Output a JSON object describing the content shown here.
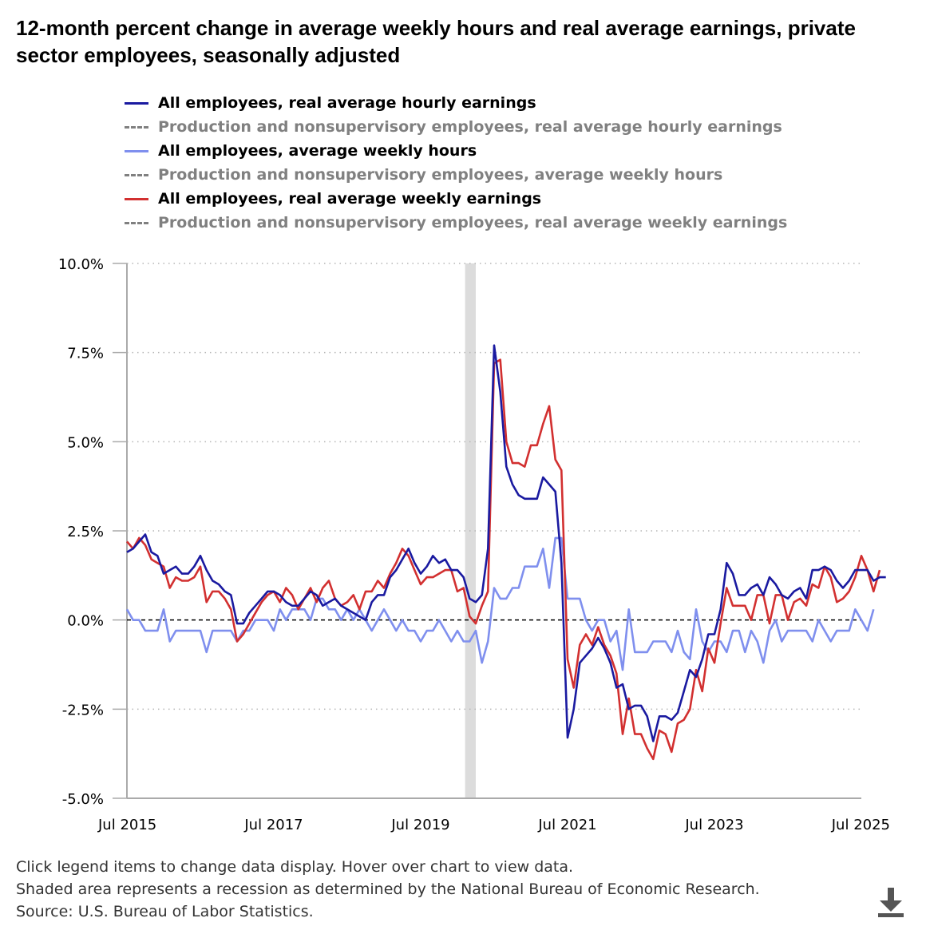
{
  "title": "12-month percent change in average weekly hours and real average earnings, private sector employees, seasonally adjusted",
  "legend": [
    {
      "label": "All employees, real average hourly earnings",
      "color": "#1a1aa0",
      "dashed": false,
      "muted": false
    },
    {
      "label": "Production and nonsupervisory employees, real average hourly earnings",
      "color": "#808080",
      "dashed": true,
      "muted": true
    },
    {
      "label": "All employees, average weekly hours",
      "color": "#7f8fee",
      "dashed": false,
      "muted": false
    },
    {
      "label": "Production and nonsupervisory employees, average weekly hours",
      "color": "#808080",
      "dashed": true,
      "muted": true
    },
    {
      "label": "All employees, real average weekly earnings",
      "color": "#d23030",
      "dashed": false,
      "muted": false
    },
    {
      "label": "Production and nonsupervisory employees, real average weekly earnings",
      "color": "#808080",
      "dashed": true,
      "muted": true
    }
  ],
  "chart_data": {
    "type": "line",
    "title": "12-month percent change in average weekly hours and real average earnings, private sector employees, seasonally adjusted",
    "xlabel": "",
    "ylabel": "",
    "x_start": "Jul 2015",
    "x_end": "Jul 2025",
    "months": 121,
    "xlim": [
      0,
      120
    ],
    "ylim": [
      -5.0,
      10.0
    ],
    "yticks": [
      -5.0,
      -2.5,
      0.0,
      2.5,
      5.0,
      7.5,
      10.0
    ],
    "ytick_labels": [
      "-5.0%",
      "-2.5%",
      "0.0%",
      "2.5%",
      "5.0%",
      "7.5%",
      "10.0%"
    ],
    "xticks": [
      0,
      24,
      48,
      72,
      96,
      120
    ],
    "xtick_labels": [
      "Jul 2015",
      "Jul 2017",
      "Jul 2019",
      "Jul 2021",
      "Jul 2023",
      "Jul 2025"
    ],
    "recession": {
      "start": 55,
      "end": 57
    },
    "zero_line": 0.0,
    "series": [
      {
        "name": "All employees, real average hourly earnings",
        "color": "#1a1aa0",
        "values": [
          1.9,
          2.0,
          2.2,
          2.4,
          1.9,
          1.8,
          1.3,
          1.4,
          1.5,
          1.3,
          1.3,
          1.5,
          1.8,
          1.4,
          1.1,
          1.0,
          0.8,
          0.7,
          -0.1,
          -0.1,
          0.2,
          0.4,
          0.6,
          0.8,
          0.8,
          0.7,
          0.5,
          0.4,
          0.4,
          0.6,
          0.8,
          0.7,
          0.4,
          0.5,
          0.6,
          0.4,
          0.3,
          0.2,
          0.1,
          0.0,
          0.5,
          0.7,
          0.7,
          1.2,
          1.4,
          1.7,
          2.0,
          1.6,
          1.3,
          1.5,
          1.8,
          1.6,
          1.7,
          1.4,
          1.4,
          1.2,
          0.6,
          0.5,
          0.7,
          2.0,
          7.7,
          6.4,
          4.3,
          3.8,
          3.5,
          3.4,
          3.4,
          3.4,
          4.0,
          3.8,
          3.6,
          1.6,
          -3.3,
          -2.5,
          -1.2,
          -1.0,
          -0.8,
          -0.5,
          -0.8,
          -1.2,
          -1.9,
          -1.8,
          -2.5,
          -2.4,
          -2.4,
          -2.7,
          -3.4,
          -2.7,
          -2.7,
          -2.8,
          -2.6,
          -2.0,
          -1.4,
          -1.6,
          -1.1,
          -0.4,
          -0.4,
          0.3,
          1.6,
          1.3,
          0.7,
          0.7,
          0.9,
          1.0,
          0.7,
          1.2,
          1.0,
          0.7,
          0.6,
          0.8,
          0.9,
          0.6,
          1.4,
          1.4,
          1.5,
          1.4,
          1.1,
          0.9,
          1.1,
          1.4,
          1.4,
          1.4,
          1.1,
          1.2,
          1.2
        ]
      },
      {
        "name": "All employees, average weekly hours",
        "color": "#7f8fee",
        "values": [
          0.3,
          0.0,
          0.0,
          -0.3,
          -0.3,
          -0.3,
          0.3,
          -0.6,
          -0.3,
          -0.3,
          -0.3,
          -0.3,
          -0.3,
          -0.9,
          -0.3,
          -0.3,
          -0.3,
          -0.3,
          -0.6,
          -0.3,
          -0.3,
          0.0,
          0.0,
          0.0,
          -0.3,
          0.3,
          0.0,
          0.3,
          0.3,
          0.3,
          0.0,
          0.6,
          0.6,
          0.3,
          0.3,
          0.0,
          0.3,
          0.0,
          0.3,
          0.0,
          -0.3,
          0.0,
          0.3,
          0.0,
          -0.3,
          0.0,
          -0.3,
          -0.3,
          -0.6,
          -0.3,
          -0.3,
          0.0,
          -0.3,
          -0.6,
          -0.3,
          -0.6,
          -0.6,
          -0.3,
          -1.2,
          -0.6,
          0.9,
          0.6,
          0.6,
          0.9,
          0.9,
          1.5,
          1.5,
          1.5,
          2.0,
          0.9,
          2.3,
          2.3,
          0.6,
          0.6,
          0.6,
          0.0,
          -0.3,
          0.0,
          0.0,
          -0.6,
          -0.3,
          -1.4,
          0.3,
          -0.9,
          -0.9,
          -0.9,
          -0.6,
          -0.6,
          -0.6,
          -0.9,
          -0.3,
          -0.9,
          -1.1,
          0.3,
          -0.6,
          -0.9,
          -0.6,
          -0.6,
          -0.9,
          -0.3,
          -0.3,
          -0.9,
          -0.3,
          -0.6,
          -1.2,
          -0.3,
          0.0,
          -0.6,
          -0.3,
          -0.3,
          -0.3,
          -0.3,
          -0.6,
          0.0,
          -0.3,
          -0.6,
          -0.3,
          -0.3,
          -0.3,
          0.3,
          0.0,
          -0.3,
          0.3
        ]
      },
      {
        "name": "All employees, real average weekly earnings",
        "color": "#d23030",
        "values": [
          2.2,
          2.0,
          2.3,
          2.1,
          1.7,
          1.6,
          1.5,
          0.9,
          1.2,
          1.1,
          1.1,
          1.2,
          1.5,
          0.5,
          0.8,
          0.8,
          0.6,
          0.3,
          -0.6,
          -0.4,
          -0.1,
          0.2,
          0.5,
          0.7,
          0.8,
          0.5,
          0.9,
          0.7,
          0.3,
          0.6,
          0.9,
          0.5,
          0.9,
          1.1,
          0.6,
          0.4,
          0.5,
          0.7,
          0.3,
          0.8,
          0.8,
          1.1,
          0.9,
          1.3,
          1.6,
          2.0,
          1.8,
          1.4,
          1.0,
          1.2,
          1.2,
          1.3,
          1.4,
          1.4,
          0.8,
          0.9,
          0.1,
          -0.1,
          0.4,
          0.8,
          7.2,
          7.3,
          5.0,
          4.4,
          4.4,
          4.3,
          4.9,
          4.9,
          5.5,
          6.0,
          4.5,
          4.2,
          -1.1,
          -1.9,
          -0.7,
          -0.4,
          -0.7,
          -0.2,
          -0.7,
          -1.0,
          -1.5,
          -3.2,
          -2.2,
          -3.2,
          -3.2,
          -3.6,
          -3.9,
          -3.1,
          -3.2,
          -3.7,
          -2.9,
          -2.8,
          -2.5,
          -1.4,
          -2.0,
          -0.8,
          -1.2,
          -0.1,
          0.9,
          0.4,
          0.4,
          0.4,
          0.0,
          0.7,
          0.7,
          -0.1,
          0.7,
          0.7,
          0.0,
          0.5,
          0.6,
          0.4,
          1.0,
          0.9,
          1.5,
          1.2,
          0.5,
          0.6,
          0.8,
          1.2,
          1.8,
          1.4,
          0.8,
          1.4
        ]
      }
    ]
  },
  "notes": [
    "Click legend items to change data display. Hover over chart to view data.",
    "Shaded area represents a recession as determined by the National Bureau of Economic Research.",
    "Source: U.S. Bureau of Labor Statistics."
  ],
  "download_icon": "download-icon"
}
